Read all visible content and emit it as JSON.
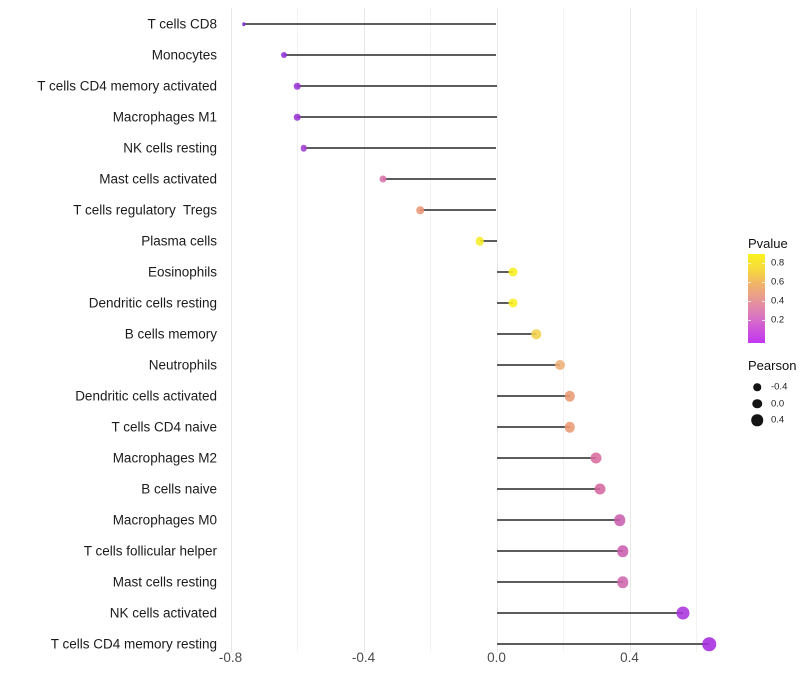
{
  "figure": {
    "background": "#ffffff"
  },
  "chart_data": {
    "type": "lollipop",
    "orientation": "horizontal",
    "title": "",
    "xlabel": "",
    "ylabel": "",
    "grid": "vertical_major_and_minor",
    "xlim": [
      -0.82,
      0.73
    ],
    "x_ticks": [
      -0.8,
      -0.4,
      0.0,
      0.4
    ],
    "x_tick_labels": [
      "-0.8",
      "-0.4",
      "0.0",
      "0.4"
    ],
    "x_minor_gridlines": [
      -0.6,
      -0.2,
      0.2,
      0.6
    ],
    "stem_color": "#5c5c5c",
    "points": [
      {
        "label": "T cells CD8",
        "pearson": -0.76,
        "pvalue_approx": 0.07,
        "color": "#7b2bd2",
        "diameter": 3.5
      },
      {
        "label": "Monocytes",
        "pearson": -0.64,
        "pvalue_approx": 0.1,
        "color": "#9232d8",
        "diameter": 6
      },
      {
        "label": "T cells CD4 memory activated",
        "pearson": -0.6,
        "pvalue_approx": 0.11,
        "color": "#9935d5",
        "diameter": 6.5
      },
      {
        "label": "Macrophages M1",
        "pearson": -0.6,
        "pvalue_approx": 0.11,
        "color": "#9935d5",
        "diameter": 6.5
      },
      {
        "label": "NK cells resting",
        "pearson": -0.58,
        "pvalue_approx": 0.13,
        "color": "#a13ed2",
        "diameter": 6.5
      },
      {
        "label": "Mast cells activated",
        "pearson": -0.34,
        "pvalue_approx": 0.36,
        "color": "#d873ab",
        "diameter": 7
      },
      {
        "label": "T cells regulatory  Tregs",
        "pearson": -0.23,
        "pvalue_approx": 0.52,
        "color": "#ec9576",
        "diameter": 7.5
      },
      {
        "label": "Plasma cells",
        "pearson": -0.05,
        "pvalue_approx": 0.85,
        "color": "#f6ee25",
        "diameter": 8.5
      },
      {
        "label": "Eosinophils",
        "pearson": 0.05,
        "pvalue_approx": 0.87,
        "color": "#f8f01e",
        "diameter": 9
      },
      {
        "label": "Dendritic cells resting",
        "pearson": 0.05,
        "pvalue_approx": 0.87,
        "color": "#f8f01e",
        "diameter": 9
      },
      {
        "label": "B cells memory",
        "pearson": 0.12,
        "pvalue_approx": 0.72,
        "color": "#f2d14b",
        "diameter": 9.5
      },
      {
        "label": "Neutrophils",
        "pearson": 0.19,
        "pvalue_approx": 0.62,
        "color": "#eeb077",
        "diameter": 10
      },
      {
        "label": "Dendritic cells activated",
        "pearson": 0.22,
        "pvalue_approx": 0.56,
        "color": "#ea9a72",
        "diameter": 10.5
      },
      {
        "label": "T cells CD4 naive",
        "pearson": 0.22,
        "pvalue_approx": 0.56,
        "color": "#ea9a72",
        "diameter": 10.5
      },
      {
        "label": "Macrophages M2",
        "pearson": 0.3,
        "pvalue_approx": 0.4,
        "color": "#d76b9e",
        "diameter": 11
      },
      {
        "label": "B cells naive",
        "pearson": 0.31,
        "pvalue_approx": 0.39,
        "color": "#d5699f",
        "diameter": 11
      },
      {
        "label": "Macrophages M0",
        "pearson": 0.37,
        "pvalue_approx": 0.33,
        "color": "#ca5fae",
        "diameter": 11.5
      },
      {
        "label": "T cells follicular helper",
        "pearson": 0.38,
        "pvalue_approx": 0.33,
        "color": "#cb5db1",
        "diameter": 11.5
      },
      {
        "label": "Mast cells resting",
        "pearson": 0.38,
        "pvalue_approx": 0.35,
        "color": "#cf68ae",
        "diameter": 11.5
      },
      {
        "label": "NK cells activated",
        "pearson": 0.56,
        "pvalue_approx": 0.1,
        "color": "#a833dc",
        "diameter": 13
      },
      {
        "label": "T cells CD4 memory resting",
        "pearson": 0.64,
        "pvalue_approx": 0.08,
        "color": "#a52be0",
        "diameter": 13.5
      }
    ],
    "legend": {
      "pvalue": {
        "title": "Pvalue",
        "tick_labels": [
          "0.8",
          "0.6",
          "0.4",
          "0.2"
        ],
        "gradient_bottom_to_top": [
          "#c236f2",
          "#cf58d8",
          "#dc7cba",
          "#e89a92",
          "#f0b567",
          "#f7da3c",
          "#faf31f"
        ],
        "value_range_bottom_to_top": [
          0.0,
          0.9
        ]
      },
      "pearson": {
        "title": "Pearson",
        "items": [
          {
            "label": "-0.4",
            "diameter": 7.5
          },
          {
            "label": "0.0",
            "diameter": 9.5
          },
          {
            "label": "0.4",
            "diameter": 11.5
          }
        ],
        "dot_color": "#141414"
      }
    }
  }
}
